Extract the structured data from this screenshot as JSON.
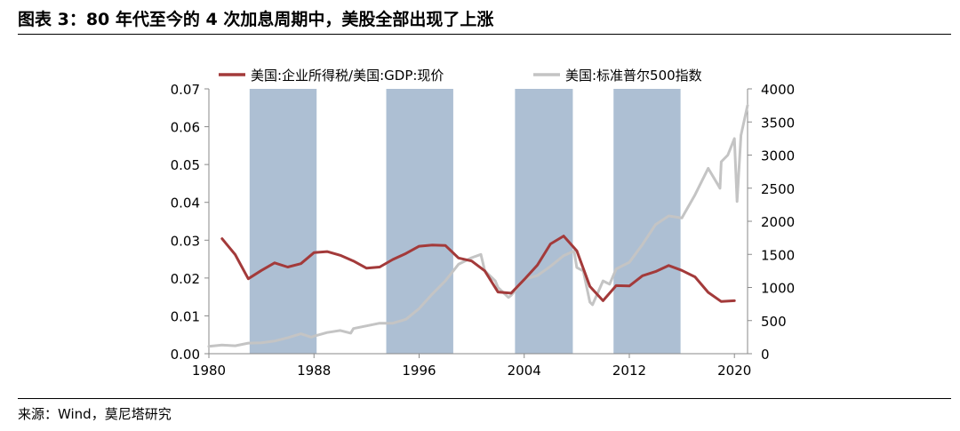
{
  "figure": {
    "title": "图表 3：80 年代至今的 4 次加息周期中，美股全部出现了上涨",
    "source": "来源：Wind，莫尼塔研究"
  },
  "chart_data": {
    "type": "line",
    "title": "图表 3：80 年代至今的 4 次加息周期中，美股全部出现了上涨",
    "x_axis": {
      "min": 1980,
      "max": 2021,
      "ticks": [
        1980,
        1988,
        1996,
        2004,
        2012,
        2020
      ]
    },
    "y_left": {
      "min": 0,
      "max": 0.07,
      "ticks": [
        "0.00",
        "0.01",
        "0.02",
        "0.03",
        "0.04",
        "0.05",
        "0.06",
        "0.07"
      ]
    },
    "y_right": {
      "min": 0,
      "max": 4000,
      "ticks": [
        "0",
        "500",
        "1000",
        "1500",
        "2000",
        "2500",
        "3000",
        "3500",
        "4000"
      ]
    },
    "legend_position": "top",
    "grid": false,
    "shaded_periods": [
      {
        "start": 1983.1,
        "end": 1988.2
      },
      {
        "start": 1993.5,
        "end": 1998.6
      },
      {
        "start": 2003.3,
        "end": 2007.7
      },
      {
        "start": 2010.8,
        "end": 2015.9
      }
    ],
    "shade_color": "#adbfd3",
    "series": [
      {
        "name": "美国:企业所得税/美国:GDP:现价",
        "axis": "left",
        "color": "#a33a3a",
        "x": [
          1981,
          1982,
          1983,
          1984,
          1985,
          1986,
          1987,
          1988,
          1989,
          1990,
          1991,
          1992,
          1993,
          1994,
          1995,
          1996,
          1997,
          1998,
          1999,
          2000,
          2001,
          2002,
          2003,
          2004,
          2005,
          2006,
          2007,
          2008,
          2009,
          2010,
          2011,
          2012,
          2013,
          2014,
          2015,
          2016,
          2017,
          2018,
          2019,
          2020
        ],
        "values": [
          0.0304,
          0.0262,
          0.0198,
          0.022,
          0.024,
          0.0229,
          0.0238,
          0.0267,
          0.027,
          0.026,
          0.0245,
          0.0226,
          0.0229,
          0.0249,
          0.0265,
          0.0284,
          0.0287,
          0.0286,
          0.0253,
          0.0245,
          0.0219,
          0.0163,
          0.016,
          0.0196,
          0.0234,
          0.029,
          0.0311,
          0.0272,
          0.0178,
          0.014,
          0.018,
          0.0179,
          0.0206,
          0.0217,
          0.0233,
          0.022,
          0.0203,
          0.0162,
          0.0138,
          0.014
        ]
      },
      {
        "name": "美国:标准普尔500指数",
        "axis": "right",
        "color": "#c4c4c4",
        "x": [
          1980,
          1981,
          1982,
          1983,
          1984,
          1985,
          1986,
          1987,
          1987.8,
          1988,
          1989,
          1990,
          1990.8,
          1991,
          1992,
          1993,
          1994,
          1995,
          1996,
          1997,
          1998,
          1999,
          2000,
          2000.7,
          2001,
          2001.8,
          2002,
          2002.8,
          2003,
          2004,
          2005,
          2006,
          2007,
          2007.8,
          2008,
          2008.5,
          2009,
          2009.2,
          2010,
          2010.5,
          2011,
          2012,
          2013,
          2014,
          2015,
          2016,
          2017,
          2018,
          2018.9,
          2019,
          2019.5,
          2020,
          2020.2,
          2020.5,
          2021
        ],
        "values": [
          110,
          130,
          120,
          160,
          165,
          190,
          240,
          300,
          250,
          265,
          320,
          350,
          310,
          380,
          420,
          460,
          460,
          520,
          680,
          900,
          1100,
          1350,
          1450,
          1500,
          1250,
          1100,
          1000,
          850,
          880,
          1120,
          1180,
          1320,
          1480,
          1550,
          1300,
          1250,
          780,
          740,
          1100,
          1050,
          1280,
          1380,
          1650,
          1950,
          2080,
          2050,
          2400,
          2800,
          2500,
          2900,
          3000,
          3250,
          2300,
          3300,
          3750
        ]
      }
    ]
  }
}
